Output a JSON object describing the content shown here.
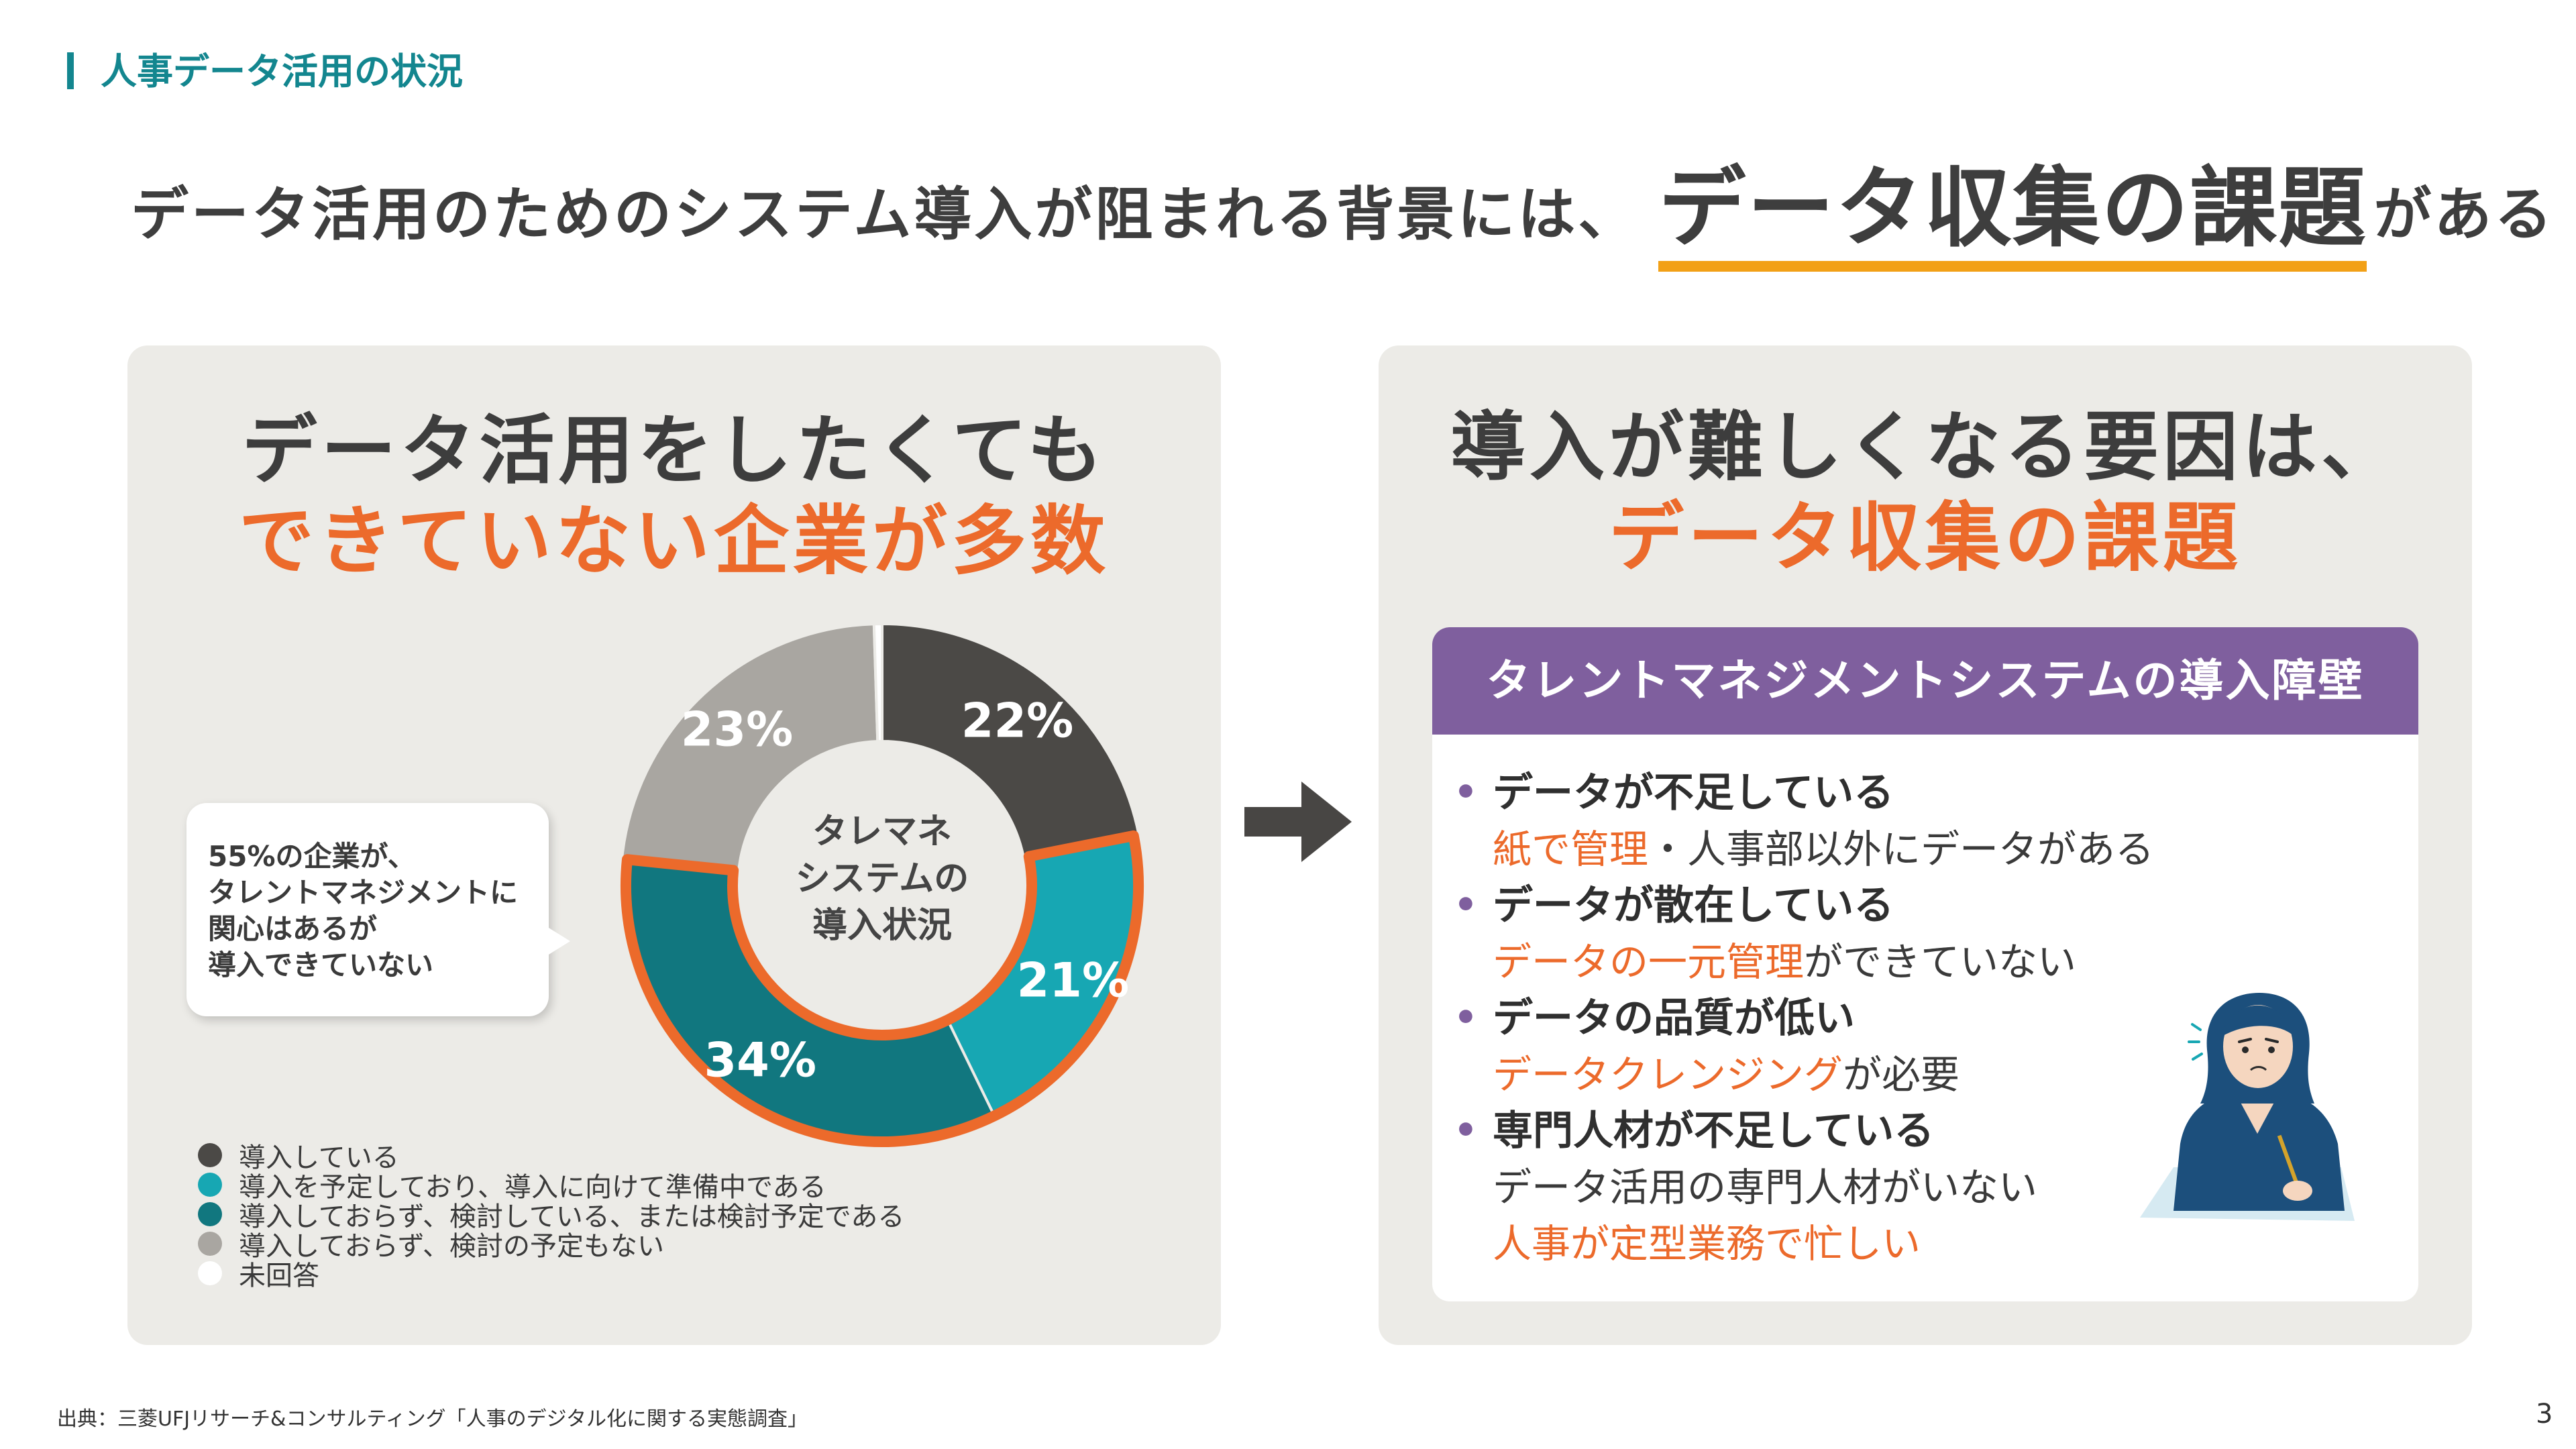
{
  "header": {
    "tag": "人事データ活用の状況",
    "headline_pre": "データ活用のためのシステム導入が阻まれる背景には、",
    "headline_emph": "データ収集の課題",
    "headline_post": "がある"
  },
  "left_panel": {
    "title_line1": "データ活用をしたくても",
    "title_line2": "できていない企業が多数",
    "center_label_line1": "タレマネ",
    "center_label_line2": "システムの",
    "center_label_line3": "導入状況",
    "callout_line1": "55%の企業が、",
    "callout_line2": "タレントマネジメントに",
    "callout_line3": "関心はあるが",
    "callout_line4": "導入できていない"
  },
  "chart_data": {
    "type": "pie",
    "donut": true,
    "categories": [
      "導入している",
      "導入を予定しており、導入に向けて準備中である",
      "導入しておらず、検討している、または検討予定である",
      "導入しておらず、検討の予定もない",
      "未回答"
    ],
    "values": [
      22,
      21,
      34,
      23,
      0.5
    ],
    "labels": [
      "22%",
      "21%",
      "34%",
      "23%",
      ""
    ],
    "colors": [
      "#4b4946",
      "#17a7b3",
      "#11777f",
      "#a9a6a1",
      "#ffffff"
    ],
    "highlight_color": "#ec6a2b",
    "legend_position": "bottom-left"
  },
  "right_panel": {
    "title_line1": "導入が難しくなる要因は、",
    "title_line2": "データ収集の課題",
    "card_header": "タレントマネジメントシステムの導入障壁",
    "items": [
      {
        "title": "データが不足している",
        "sub_hl": "紙で管理",
        "sub_rest": "・人事部以外にデータがある"
      },
      {
        "title": "データが散在している",
        "sub_hl": "データの一元管理",
        "sub_rest": "ができていない"
      },
      {
        "title": "データの品質が低い",
        "sub_hl": "データクレンジング",
        "sub_rest": "が必要"
      },
      {
        "title": "専門人材が不足している",
        "sub_plain": "データ活用の専門人材がいない",
        "sub_hl2": "人事が定型業務で忙しい"
      }
    ]
  },
  "footer": {
    "source": "出典：三菱UFJリサーチ&コンサルティング「人事のデジタル化に関する実態調査」",
    "page": "3"
  }
}
